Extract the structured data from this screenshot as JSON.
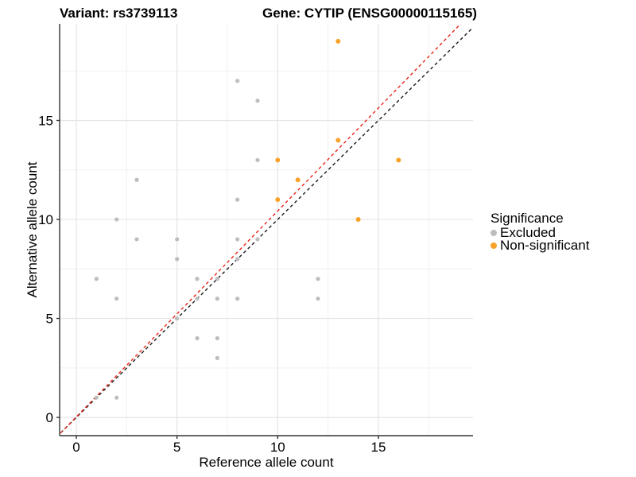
{
  "titles": {
    "variant": "Variant: rs3739113",
    "gene": "Gene: CYTIP (ENSG00000115165)"
  },
  "chart_data": {
    "type": "scatter",
    "xlabel": "Reference allele count",
    "ylabel": "Alternative allele count",
    "xlim": [
      -0.83,
      19.7
    ],
    "ylim": [
      -0.92,
      19.88
    ],
    "x_ticks": [
      0,
      5,
      10,
      15
    ],
    "y_ticks": [
      0,
      5,
      10,
      15
    ],
    "minor_step": 2.5,
    "grid": true,
    "colors": {
      "excluded": "#BDBDBD",
      "non_significant": "#F9A229",
      "identity_line": "#1a1a1a",
      "fit_line": "#EC2418",
      "grid_major": "#E4E4E4",
      "grid_minor": "#F0F0F0",
      "axis": "#333333"
    },
    "series": [
      {
        "name": "Excluded",
        "color": "#BDBDBD",
        "radius": 2.6,
        "points": [
          [
            1,
            1
          ],
          [
            2,
            1
          ],
          [
            7,
            3
          ],
          [
            6,
            4
          ],
          [
            7,
            4
          ],
          [
            5,
            5
          ],
          [
            2,
            6
          ],
          [
            6,
            6
          ],
          [
            7,
            6
          ],
          [
            8,
            6
          ],
          [
            12,
            6
          ],
          [
            1,
            7
          ],
          [
            6,
            7
          ],
          [
            7,
            7
          ],
          [
            12,
            7
          ],
          [
            5,
            8
          ],
          [
            8,
            8
          ],
          [
            3,
            9
          ],
          [
            5,
            9
          ],
          [
            8,
            9
          ],
          [
            9,
            9
          ],
          [
            2,
            10
          ],
          [
            8,
            11
          ],
          [
            3,
            12
          ],
          [
            9,
            13
          ],
          [
            9,
            16
          ],
          [
            8,
            17
          ]
        ]
      },
      {
        "name": "Non-significant",
        "color": "#F9A229",
        "radius": 3.0,
        "points": [
          [
            14,
            10
          ],
          [
            10,
            11
          ],
          [
            11,
            12
          ],
          [
            10,
            13
          ],
          [
            16,
            13
          ],
          [
            13,
            14
          ],
          [
            13,
            19
          ]
        ]
      }
    ],
    "lines": [
      {
        "name": "identity-line",
        "slope": 1.0,
        "intercept": 0.0,
        "color": "#1a1a1a"
      },
      {
        "name": "fit-line",
        "slope": 1.04,
        "intercept": 0.03,
        "color": "#EC2418"
      }
    ],
    "legend": {
      "title": "Significance",
      "position": "right",
      "items": [
        {
          "label": "Excluded",
          "color": "#BDBDBD"
        },
        {
          "label": "Non-significant",
          "color": "#F9A229"
        }
      ]
    }
  }
}
